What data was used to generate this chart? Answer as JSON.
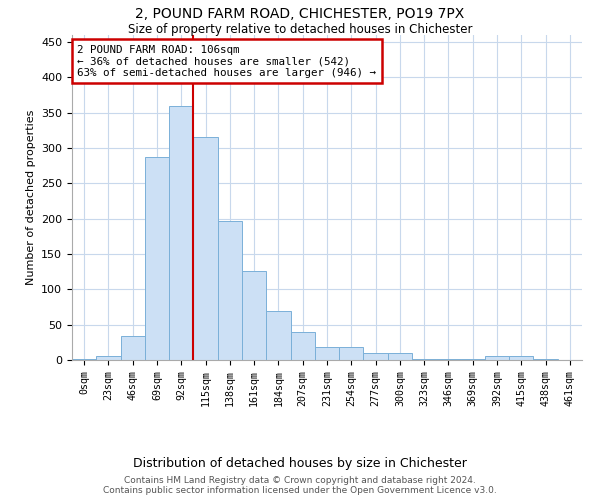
{
  "title": "2, POUND FARM ROAD, CHICHESTER, PO19 7PX",
  "subtitle": "Size of property relative to detached houses in Chichester",
  "xlabel": "Distribution of detached houses by size in Chichester",
  "ylabel": "Number of detached properties",
  "bar_labels": [
    "0sqm",
    "23sqm",
    "46sqm",
    "69sqm",
    "92sqm",
    "115sqm",
    "138sqm",
    "161sqm",
    "184sqm",
    "207sqm",
    "231sqm",
    "254sqm",
    "277sqm",
    "300sqm",
    "323sqm",
    "346sqm",
    "369sqm",
    "392sqm",
    "415sqm",
    "438sqm",
    "461sqm"
  ],
  "bar_values": [
    2,
    5,
    34,
    288,
    360,
    316,
    197,
    126,
    70,
    40,
    19,
    19,
    10,
    10,
    2,
    1,
    1,
    6,
    5,
    1,
    0
  ],
  "bar_color": "#cce0f5",
  "bar_edge_color": "#7ab0d8",
  "marker_bin_index": 4,
  "marker_label": "2 POUND FARM ROAD: 106sqm",
  "annotation_line1": "← 36% of detached houses are smaller (542)",
  "annotation_line2": "63% of semi-detached houses are larger (946) →",
  "annotation_box_color": "#ffffff",
  "annotation_box_edge": "#cc0000",
  "vline_color": "#cc0000",
  "ylim": [
    0,
    460
  ],
  "yticks": [
    0,
    50,
    100,
    150,
    200,
    250,
    300,
    350,
    400,
    450
  ],
  "footer_line1": "Contains HM Land Registry data © Crown copyright and database right 2024.",
  "footer_line2": "Contains public sector information licensed under the Open Government Licence v3.0.",
  "bg_color": "#ffffff",
  "grid_color": "#c8d8ec"
}
